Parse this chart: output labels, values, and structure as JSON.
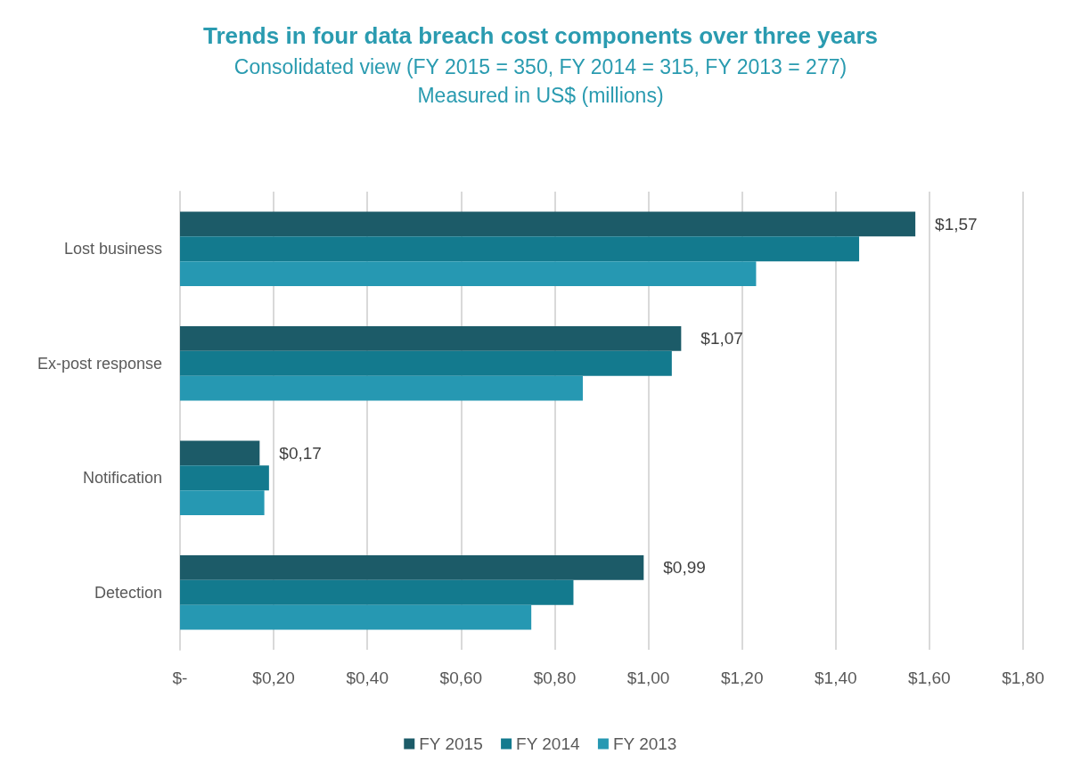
{
  "chart_data": {
    "type": "bar",
    "orientation": "horizontal",
    "title": "Trends in four data breach cost components over three years",
    "subtitle": "Consolidated view (FY 2015 = 350, FY 2014 = 315, FY 2013 = 277)\nMeasured in US$ (millions)",
    "categories": [
      "Lost business",
      "Ex-post response",
      "Notification",
      "Detection"
    ],
    "series": [
      {
        "name": "FY 2015",
        "color": "#1c5b68",
        "values": [
          1.57,
          1.07,
          0.17,
          0.99
        ],
        "value_labels": [
          "$1,57",
          "$1,07",
          "$0,17",
          "$0,99"
        ]
      },
      {
        "name": "FY 2014",
        "color": "#137a8e",
        "values": [
          1.45,
          1.05,
          0.19,
          0.84
        ]
      },
      {
        "name": "FY 2013",
        "color": "#2698b2",
        "values": [
          1.23,
          0.86,
          0.18,
          0.75
        ]
      }
    ],
    "xlim": [
      0,
      1.8
    ],
    "xticks": [
      {
        "value": 0,
        "label": "$-"
      },
      {
        "value": 0.2,
        "label": "$0,20"
      },
      {
        "value": 0.4,
        "label": "$0,40"
      },
      {
        "value": 0.6,
        "label": "$0,60"
      },
      {
        "value": 0.8,
        "label": "$0,80"
      },
      {
        "value": 1,
        "label": "$1,00"
      },
      {
        "value": 1.2,
        "label": "$1,20"
      },
      {
        "value": 1.4,
        "label": "$1,40"
      },
      {
        "value": 1.6,
        "label": "$1,60"
      },
      {
        "value": 1.8,
        "label": "$1,80"
      }
    ],
    "grid": "x",
    "legend": "bottom"
  }
}
